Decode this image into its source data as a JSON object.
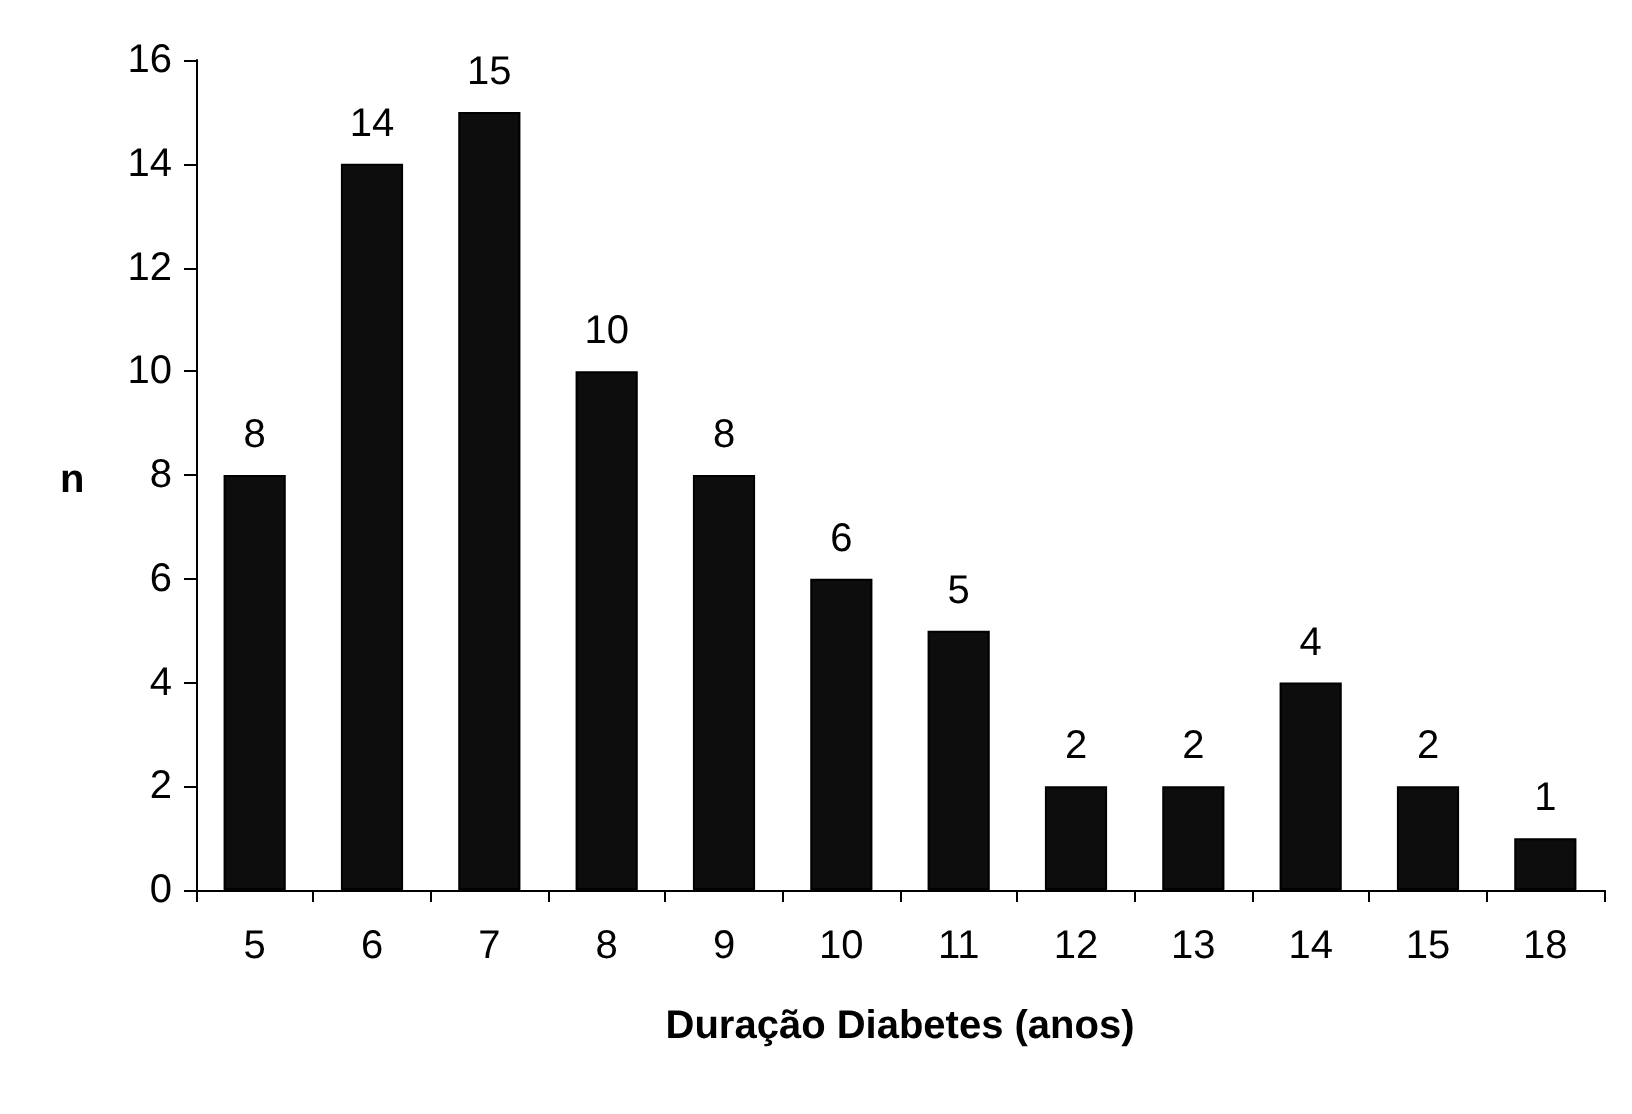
{
  "chart_data": {
    "type": "bar",
    "xlabel": "Duração Diabetes (anos)",
    "ylabel": "n",
    "categories": [
      "5",
      "6",
      "7",
      "8",
      "9",
      "10",
      "11",
      "12",
      "13",
      "14",
      "15",
      "18"
    ],
    "values": [
      8,
      14,
      15,
      10,
      8,
      6,
      5,
      2,
      2,
      4,
      2,
      1
    ],
    "color": "#0d0d0d",
    "ylim": [
      0,
      16
    ],
    "yticks": [
      0,
      2,
      4,
      6,
      8,
      10,
      12,
      14,
      16
    ],
    "grid": false,
    "data_labels": true
  }
}
